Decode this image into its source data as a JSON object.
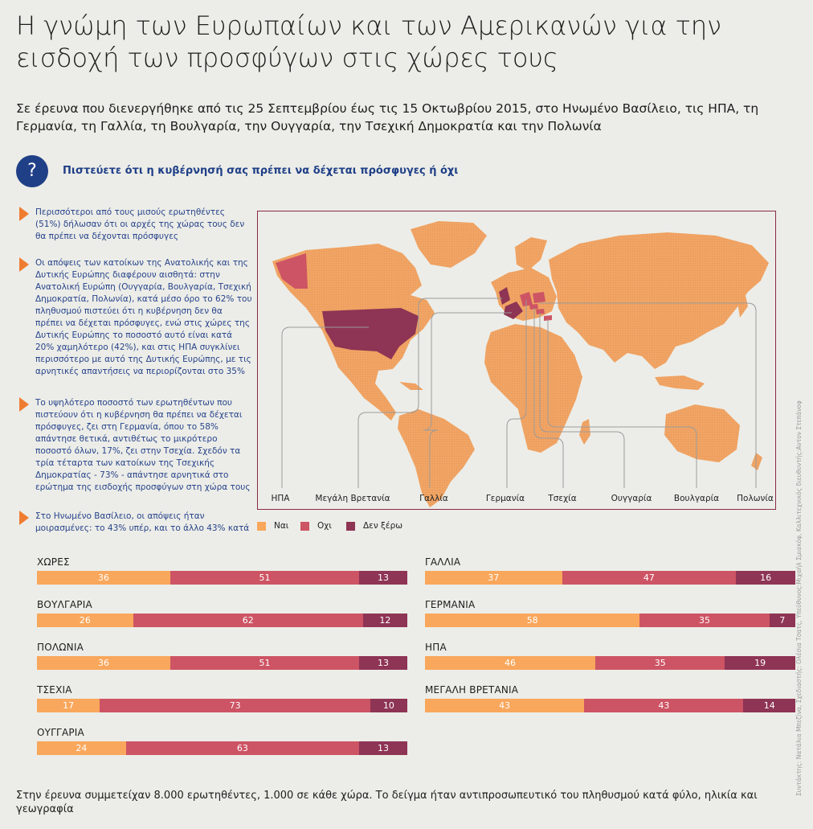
{
  "title": "Η γνώμη των Ευρωπαίων και των Αμερικανών για την εισδοχή των προσφύγων στις χώρες τους",
  "subtitle": "Σε έρευνα που διενεργήθηκε από τις 25 Σεπτεμβρίου έως τις 15 Οκτωβρίου 2015, στο Ηνωμένο Βασίλειο, τις ΗΠΑ, τη Γερμανία, τη Γαλλία, τη Βουλγαρία, την Ουγγαρία, την Τσεχική Δημοκρατία και την Πολωνία",
  "question": {
    "icon": "question-icon",
    "symbol": "?",
    "text": "Πιστεύετε ότι η κυβέρνησή σας πρέπει να δέχεται πρόσφυγες ή όχι"
  },
  "notes": [
    "Περισσότεροι από τους μισούς ερωτηθέντες (51%) δήλωσαν ότι οι αρχές της χώρας τους δεν θα πρέπει να δέχονται πρόσφυγες",
    "Οι απόψεις των κατοίκων της Ανατολικής και της Δυτικής Ευρώπης διαφέρουν αισθητά: στην Ανατολική Ευρώπη (Ουγγαρία, Βουλγαρία, Τσεχική Δημοκρατία, Πολωνία), κατά μέσο όρο το 62% του πληθυσμού πιστεύει ότι η κυβέρνηση δεν θα πρέπει να δέχεται πρόσφυγες, ενώ στις χώρες της Δυτικής Ευρώπης το ποσοστό αυτό είναι κατά 20% χαμηλότερο (42%), και στις ΗΠΑ συγκλίνει περισσότερο με αυτό της Δυτικής Ευρώπης, με τις αρνητικές απαντήσεις να περιορίζονται στο 35%",
    "Το υψηλότερο ποσοστό των ερωτηθέντων που πιστεύουν ότι η κυβέρνηση θα πρέπει να δέχεται πρόσφυγες, ζει στη Γερμανία, όπου το 58% απάντησε θετικά, αντιθέτως το μικρότερο ποσοστό όλων, 17%, ζει στην Τσεχία. Σχεδόν τα τρία τέταρτα των κατοίκων της Τσεχικής Δημοκρατίας - 73% - απάντησε αρνητικά στο ερώτημα της εισδοχής προσφύγων στη χώρα τους",
    "Στο Ηνωμένο Βασίλειο, οι απόψεις ήταν μοιρασμένες: το 43% υπέρ, και το άλλο 43% κατά"
  ],
  "map_labels": [
    "ΗΠΑ",
    "Μεγάλη Βρετανία",
    "Γαλλία",
    "Γερμανία",
    "Τσεχία",
    "Ουγγαρία",
    "Βουλγαρία",
    "Πολωνία"
  ],
  "legend": [
    {
      "label": "Ναι",
      "color": "#f9a75c"
    },
    {
      "label": "Οχι",
      "color": "#cd5464"
    },
    {
      "label": "Δεν ξέρω",
      "color": "#8e3454"
    }
  ],
  "chart_data": {
    "type": "bar",
    "stacked": true,
    "percent": true,
    "series_names": [
      "Ναι",
      "Οχι",
      "Δεν ξέρω"
    ],
    "colors": [
      "#f9a75c",
      "#cd5464",
      "#8e3454"
    ],
    "left_column": [
      {
        "category": "ΧΩΡΕΣ",
        "values": [
          36,
          51,
          13
        ]
      },
      {
        "category": "ΒΟΥΛΓΑΡΙΑ",
        "values": [
          26,
          62,
          12
        ]
      },
      {
        "category": "ΠΟΛΩΝΙΑ",
        "values": [
          36,
          51,
          13
        ]
      },
      {
        "category": "ΤΣΕΧΙΑ",
        "values": [
          17,
          73,
          10
        ]
      },
      {
        "category": "ΟΥΓΓΑΡΙΑ",
        "values": [
          24,
          63,
          13
        ]
      }
    ],
    "right_column": [
      {
        "category": "ΓΑΛΛΙΑ",
        "values": [
          37,
          47,
          16
        ]
      },
      {
        "category": "ΓΕΡΜΑΝΙΑ",
        "values": [
          58,
          35,
          7
        ]
      },
      {
        "category": "ΗΠΑ",
        "values": [
          46,
          35,
          19
        ]
      },
      {
        "category": "ΜΕΓΑΛΗ ΒΡΕΤΑΝΙΑ",
        "values": [
          43,
          43,
          14
        ]
      }
    ]
  },
  "footer": "Στην έρευνα συμμετείχαν 8.000 ερωτηθέντες, 1.000 σε κάθε χώρα. Το δείγμα ήταν αντιπροσωπευτικό του πληθυσμού κατά φύλο, ηλικία και γεωγραφία",
  "credits": "Συντάκτης: Νατάλια Μπεζίνα, Σχεδιαστής: Ολέσια Τσατς, Υπεύθυνος:Μιχαήλ Σμιακόφ, Καλλιτεχνικός διευθυντής:Αντον Στεπάνοφ"
}
